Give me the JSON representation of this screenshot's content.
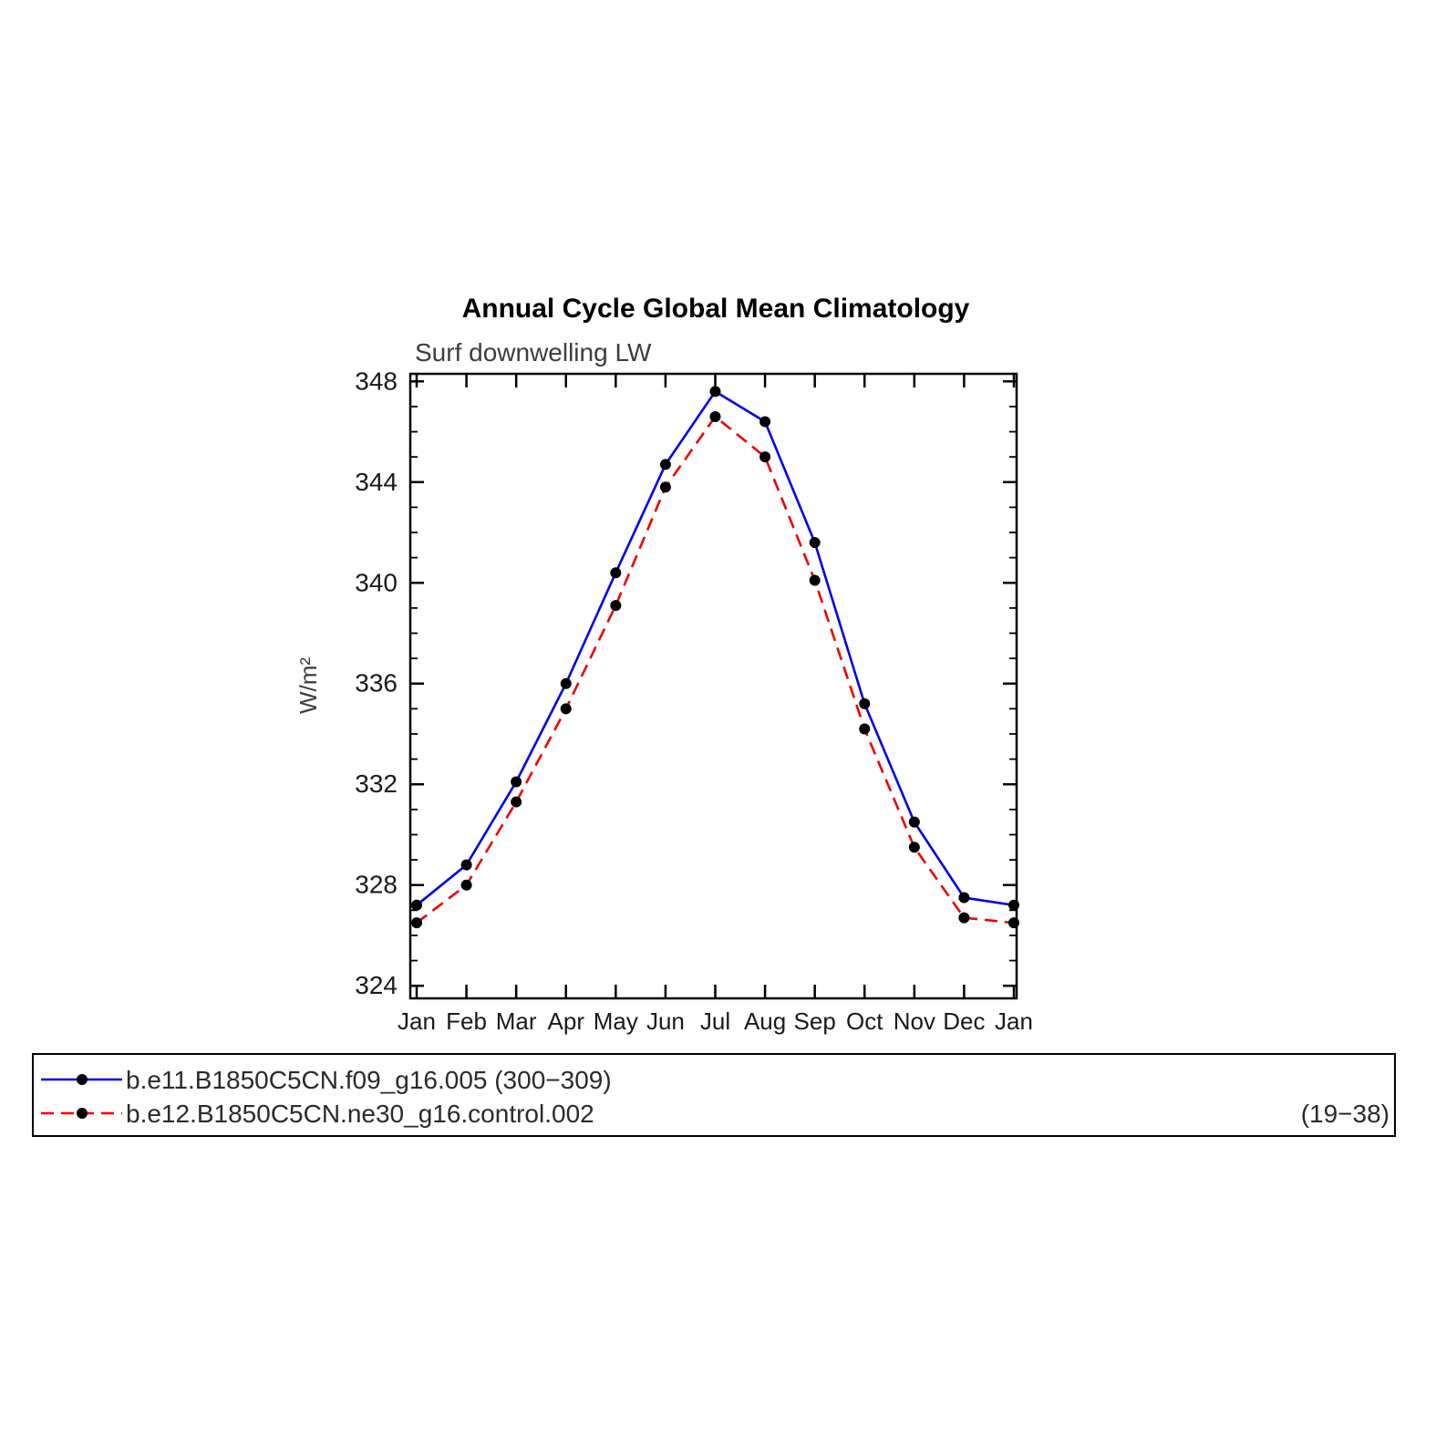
{
  "page": {
    "background": "#ffffff"
  },
  "chart_data": {
    "type": "line",
    "title": "Annual Cycle Global Mean Climatology",
    "subtitle": "Surf downwelling LW",
    "ylabel": "W/m²",
    "categories": [
      "Jan",
      "Feb",
      "Mar",
      "Apr",
      "May",
      "Jun",
      "Jul",
      "Aug",
      "Sep",
      "Oct",
      "Nov",
      "Dec",
      "Jan"
    ],
    "ylim": [
      323.5,
      348.3
    ],
    "yticks_major": [
      324,
      328,
      332,
      336,
      340,
      344,
      348
    ],
    "yticks_minor_step": 1,
    "grid": "off",
    "legend_position": "bottom",
    "series": [
      {
        "name": "b.e11.B1850C5CN.f09_g16.005 (300−309)",
        "color": "#0000ee",
        "style": "solid",
        "marker": "circle",
        "marker_color": "#000000",
        "values": [
          327.2,
          328.8,
          332.1,
          336.0,
          340.4,
          344.7,
          347.6,
          346.4,
          341.6,
          335.2,
          330.5,
          327.5,
          327.2
        ]
      },
      {
        "name": "b.e12.B1850C5CN.ne30_g16.control.002",
        "color": "#ee0000",
        "style": "dashed",
        "marker": "circle",
        "marker_color": "#000000",
        "values": [
          326.5,
          328.0,
          331.3,
          335.0,
          339.1,
          343.8,
          346.6,
          345.0,
          340.1,
          334.2,
          329.5,
          326.7,
          326.5
        ]
      }
    ],
    "legend_right_note": "(19−38)"
  }
}
